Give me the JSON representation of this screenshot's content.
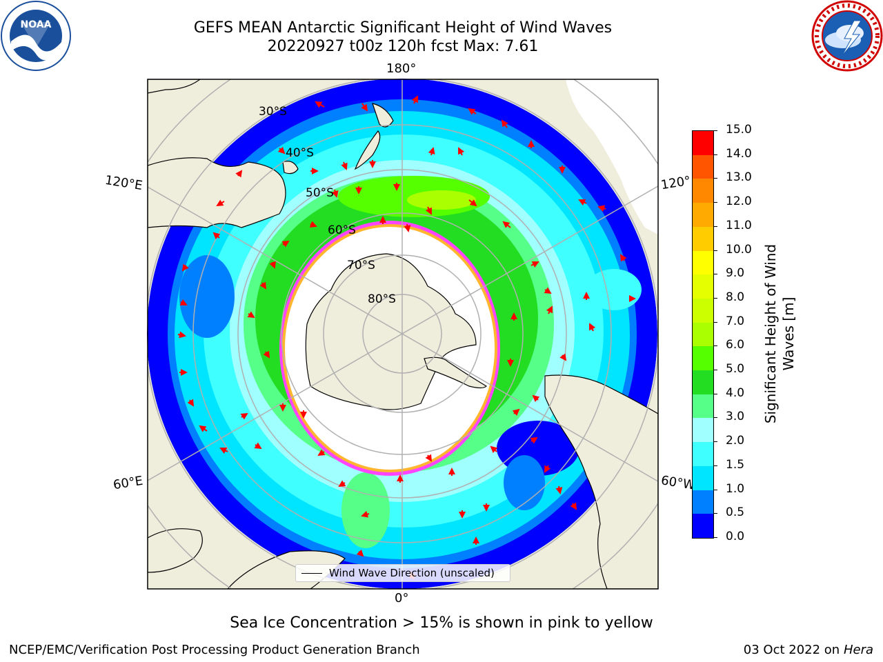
{
  "title": {
    "line1": "GEFS MEAN Antarctic Significant Height of Wind Waves",
    "line2": "20220927 t00z 120h fcst   Max: 7.61"
  },
  "logos": {
    "left": "noaa-logo",
    "right": "nws-logo",
    "left_text": "NOAA"
  },
  "map": {
    "projection": "south-polar-stereographic",
    "longitude_labels": {
      "top": "180°",
      "bottom": "0°",
      "upper_left": "120°E",
      "upper_right": "120°",
      "lower_left": "60°E",
      "lower_right": "60°W"
    },
    "latitude_labels": [
      "30°S",
      "40°S",
      "50°S",
      "60°S",
      "70°S",
      "80°S"
    ],
    "legend_label": "Wind Wave Direction (unscaled)",
    "arrow_color": "#ff0000",
    "land_color": "#efeddc",
    "ice_colors": [
      "#ff44ff",
      "#ffb52e"
    ],
    "max_value": 7.61
  },
  "colorbar": {
    "ticks": [
      "0.0",
      "0.5",
      "1.0",
      "1.5",
      "2.0",
      "3.0",
      "4.0",
      "5.0",
      "6.0",
      "7.0",
      "8.0",
      "9.0",
      "10.0",
      "11.0",
      "12.0",
      "13.0",
      "14.0",
      "15.0"
    ],
    "colors": [
      "#0000ff",
      "#0080ff",
      "#00e5ff",
      "#40ffff",
      "#a0ffff",
      "#55ff88",
      "#22dd22",
      "#55ff00",
      "#aaff00",
      "#ccff00",
      "#e5ff00",
      "#ffff00",
      "#ffcc00",
      "#ffaa00",
      "#ff8800",
      "#ff5500",
      "#ff0000"
    ],
    "label": "Significant Height of Wind Waves [m]"
  },
  "footer": {
    "caption": "Sea Ice Concentration > 15% is shown in pink to yellow",
    "left": "NCEP/EMC/Verification Post Processing Product Generation Branch",
    "right_date": "03 Oct 2022 on ",
    "right_host": "Hera"
  }
}
